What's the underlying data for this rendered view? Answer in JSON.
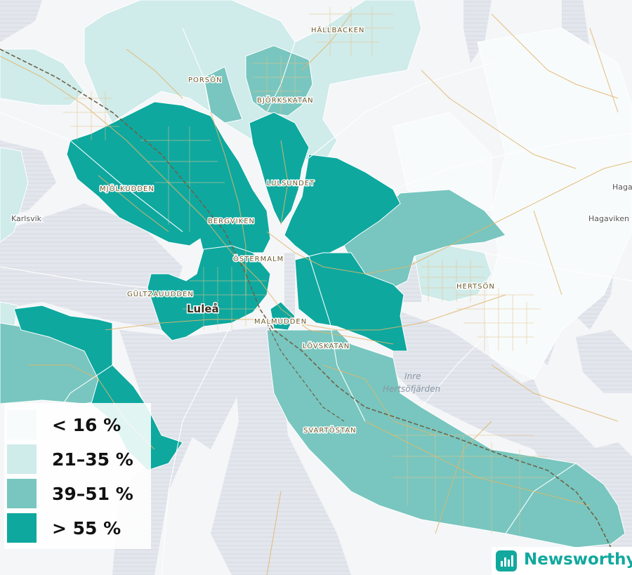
{
  "legend": {
    "items": [
      {
        "label": "< 16 %",
        "color": "#f7fbfc"
      },
      {
        "label": "21–35 %",
        "color": "#cfebea"
      },
      {
        "label": "39–51 %",
        "color": "#78c6bf"
      },
      {
        "label": "> 55 %",
        "color": "#0ea89f"
      }
    ]
  },
  "places": {
    "hallbacken": "HÄLLBACKEN",
    "porson": "PORSÖN",
    "bjorkskatan": "BJÖRKSKATAN",
    "mjolkudden": "MJÖLKUDDEN",
    "lulsundet": "LULSUNDET",
    "bergviken": "BERGVIKEN",
    "ostermalm": "ÖSTERMALM",
    "gultzauudden": "GÜLTZAUUDDEN",
    "malmudden": "MALMUDDEN",
    "hertson": "HERTSÖN",
    "lovskatan": "LÖVSKATAN",
    "svartostan": "SVARTÖSTAN",
    "karlsvik": "Karlsvik",
    "haga": "Haga",
    "hagaviken": "Hagaviken",
    "lulea": "Luleå",
    "inre1": "Inre",
    "inre2": "Hertsöfjärden"
  },
  "brand": {
    "name": "Newsworthy",
    "color": "#11a89e"
  }
}
